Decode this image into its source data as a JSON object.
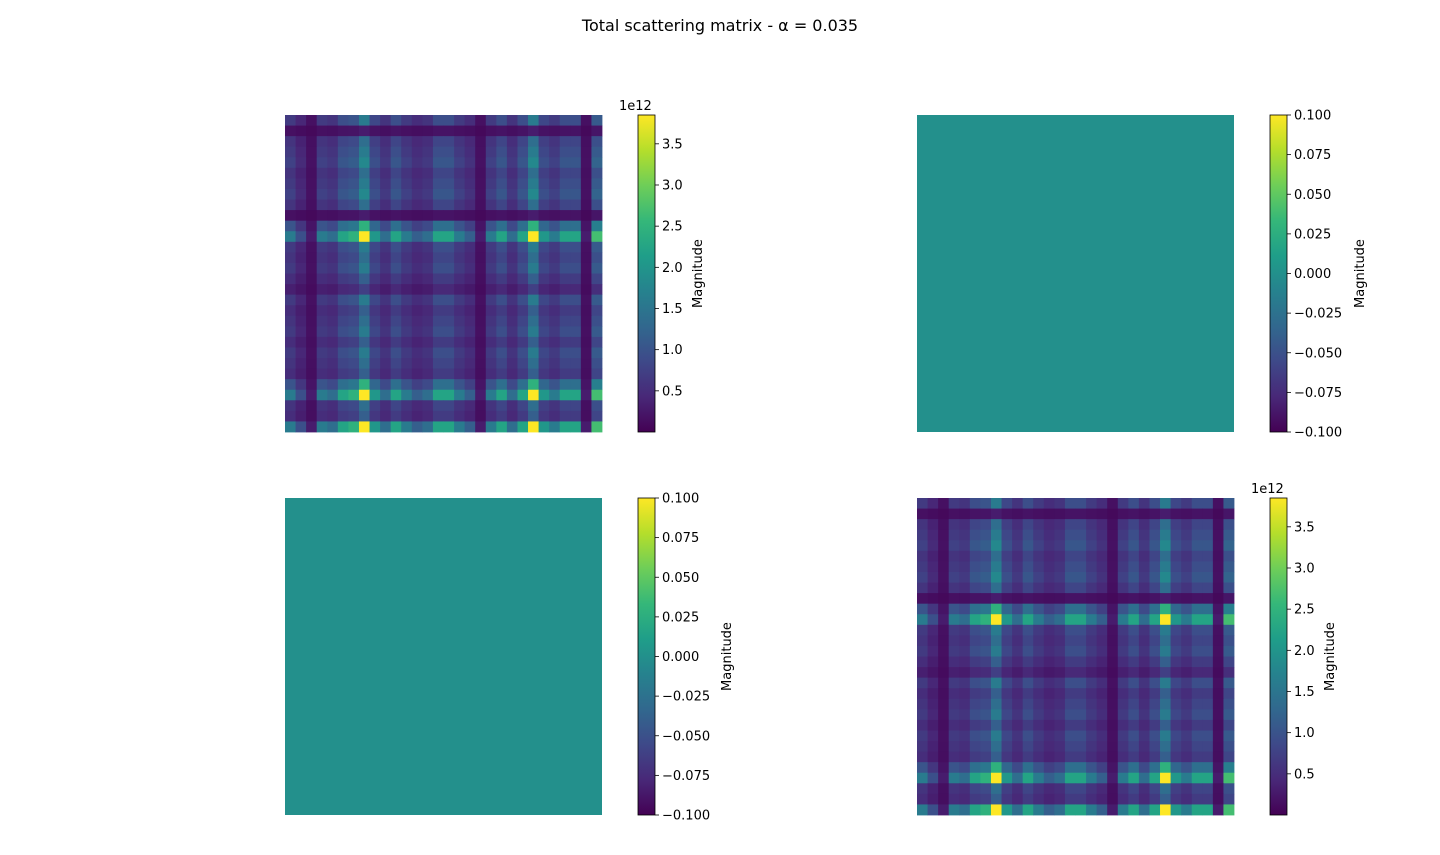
{
  "figure": {
    "title": "Total scattering matrix - α = 0.035"
  },
  "colormap": {
    "name": "viridis",
    "stops": [
      "#440154",
      "#482878",
      "#3e4989",
      "#31688e",
      "#26828e",
      "#1f9e89",
      "#35b779",
      "#6ece58",
      "#b5de2b",
      "#fde725"
    ]
  },
  "chart_data": [
    {
      "type": "heatmap",
      "panel": "top-left",
      "grid": false,
      "axes_visible": false,
      "matrix_size": [
        30,
        30
      ],
      "pattern": {
        "row_profile": [
          0.35,
          0.05,
          0.3,
          0.35,
          0.4,
          0.3,
          0.35,
          0.4,
          0.3,
          0.05,
          0.55,
          0.9,
          0.35,
          0.3,
          0.35,
          0.25,
          0.15,
          0.35,
          0.25,
          0.3,
          0.35,
          0.25,
          0.35,
          0.3,
          0.25,
          0.55,
          0.9,
          0.3,
          0.25,
          0.9
        ],
        "col_profile": [
          0.35,
          0.2,
          0.05,
          0.35,
          0.3,
          0.5,
          0.55,
          0.9,
          0.45,
          0.3,
          0.5,
          0.35,
          0.25,
          0.3,
          0.5,
          0.5,
          0.35,
          0.25,
          0.05,
          0.35,
          0.5,
          0.3,
          0.5,
          0.9,
          0.45,
          0.35,
          0.5,
          0.5,
          0.05,
          0.6
        ]
      },
      "colorbar": {
        "label": "Magnitude",
        "offset_text": "1e12",
        "vmin": 0.0,
        "vmax": 3.85,
        "ticks": [
          "0.5",
          "1.0",
          "1.5",
          "2.0",
          "2.5",
          "3.0",
          "3.5"
        ],
        "tick_values": [
          0.5,
          1.0,
          1.5,
          2.0,
          2.5,
          3.0,
          3.5
        ]
      }
    },
    {
      "type": "heatmap",
      "panel": "top-right",
      "grid": false,
      "axes_visible": false,
      "matrix_size": [
        30,
        30
      ],
      "constant_value": 0.0,
      "colorbar": {
        "label": "Magnitude",
        "vmin": -0.1,
        "vmax": 0.1,
        "ticks": [
          "−0.100",
          "−0.075",
          "−0.050",
          "−0.025",
          "0.000",
          "0.025",
          "0.050",
          "0.075",
          "0.100"
        ],
        "tick_values": [
          -0.1,
          -0.075,
          -0.05,
          -0.025,
          0.0,
          0.025,
          0.05,
          0.075,
          0.1
        ]
      }
    },
    {
      "type": "heatmap",
      "panel": "bottom-left",
      "grid": false,
      "axes_visible": false,
      "matrix_size": [
        30,
        30
      ],
      "constant_value": 0.0,
      "colorbar": {
        "label": "Magnitude",
        "vmin": -0.1,
        "vmax": 0.1,
        "ticks": [
          "−0.100",
          "−0.075",
          "−0.050",
          "−0.025",
          "0.000",
          "0.025",
          "0.050",
          "0.075",
          "0.100"
        ],
        "tick_values": [
          -0.1,
          -0.075,
          -0.05,
          -0.025,
          0.0,
          0.025,
          0.05,
          0.075,
          0.1
        ]
      }
    },
    {
      "type": "heatmap",
      "panel": "bottom-right",
      "grid": false,
      "axes_visible": false,
      "matrix_size": [
        30,
        30
      ],
      "pattern": {
        "row_profile": [
          0.35,
          0.05,
          0.3,
          0.35,
          0.4,
          0.3,
          0.35,
          0.4,
          0.3,
          0.05,
          0.55,
          0.9,
          0.35,
          0.3,
          0.35,
          0.25,
          0.15,
          0.35,
          0.25,
          0.3,
          0.35,
          0.25,
          0.35,
          0.3,
          0.25,
          0.55,
          0.9,
          0.3,
          0.25,
          0.9
        ],
        "col_profile": [
          0.35,
          0.2,
          0.05,
          0.35,
          0.3,
          0.5,
          0.55,
          0.9,
          0.45,
          0.3,
          0.5,
          0.35,
          0.25,
          0.3,
          0.5,
          0.5,
          0.35,
          0.25,
          0.05,
          0.35,
          0.5,
          0.3,
          0.5,
          0.9,
          0.45,
          0.35,
          0.5,
          0.5,
          0.05,
          0.6
        ]
      },
      "colorbar": {
        "label": "Magnitude",
        "offset_text": "1e12",
        "vmin": 0.0,
        "vmax": 3.85,
        "ticks": [
          "0.5",
          "1.0",
          "1.5",
          "2.0",
          "2.5",
          "3.0",
          "3.5"
        ],
        "tick_values": [
          0.5,
          1.0,
          1.5,
          2.0,
          2.5,
          3.0,
          3.5
        ]
      }
    }
  ]
}
